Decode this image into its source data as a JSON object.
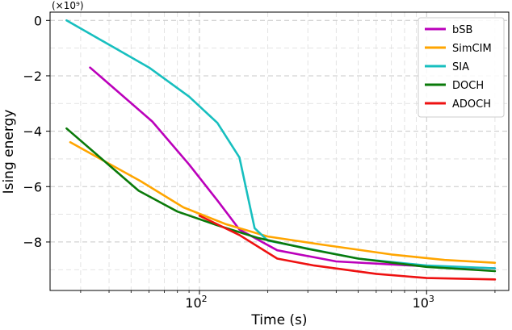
{
  "chart_data": {
    "type": "line",
    "title": "",
    "xlabel": "Time (s)",
    "ylabel": "Ising energy",
    "x_scale": "log",
    "xlim": [
      22,
      2300
    ],
    "ylim": [
      -9.75,
      0.3
    ],
    "y_multiplier_label": "(×10⁹)",
    "grid": true,
    "grid_minor": true,
    "legend_position": "top-right",
    "x_ticks": [
      {
        "value": 100,
        "label": "10",
        "exp": "2"
      },
      {
        "value": 1000,
        "label": "10",
        "exp": "3"
      }
    ],
    "y_ticks": [
      {
        "value": 0,
        "label": "0"
      },
      {
        "value": -2,
        "label": "−2"
      },
      {
        "value": -4,
        "label": "−4"
      },
      {
        "value": -6,
        "label": "−6"
      },
      {
        "value": -8,
        "label": "−8"
      }
    ],
    "series": [
      {
        "name": "bSB",
        "color": "#bb00bb",
        "x": [
          33,
          62,
          90,
          120,
          150,
          220,
          400,
          1000,
          2000
        ],
        "y": [
          -1.7,
          -3.65,
          -5.2,
          -6.5,
          -7.55,
          -8.3,
          -8.7,
          -8.88,
          -8.95
        ]
      },
      {
        "name": "SimCIM",
        "color": "#ffa500",
        "x": [
          27,
          55,
          85,
          130,
          200,
          350,
          700,
          1200,
          2000
        ],
        "y": [
          -4.4,
          -5.8,
          -6.75,
          -7.35,
          -7.8,
          -8.1,
          -8.45,
          -8.65,
          -8.75
        ]
      },
      {
        "name": "SIA",
        "color": "#17bfbf",
        "x": [
          26,
          60,
          90,
          120,
          150,
          175,
          200,
          500,
          1000,
          2000
        ],
        "y": [
          0.0,
          -1.7,
          -2.75,
          -3.7,
          -4.95,
          -7.5,
          -7.95,
          -8.6,
          -8.85,
          -8.95
        ]
      },
      {
        "name": "DOCH",
        "color": "#0a7a0a",
        "x": [
          26,
          54,
          80,
          120,
          180,
          300,
          500,
          1000,
          2000
        ],
        "y": [
          -3.9,
          -6.15,
          -6.9,
          -7.4,
          -7.85,
          -8.25,
          -8.6,
          -8.9,
          -9.05
        ]
      },
      {
        "name": "ADOCH",
        "color": "#ee1111",
        "x": [
          100,
          150,
          220,
          320,
          600,
          1000,
          2000
        ],
        "y": [
          -7.05,
          -7.75,
          -8.6,
          -8.85,
          -9.15,
          -9.3,
          -9.35
        ]
      }
    ]
  }
}
